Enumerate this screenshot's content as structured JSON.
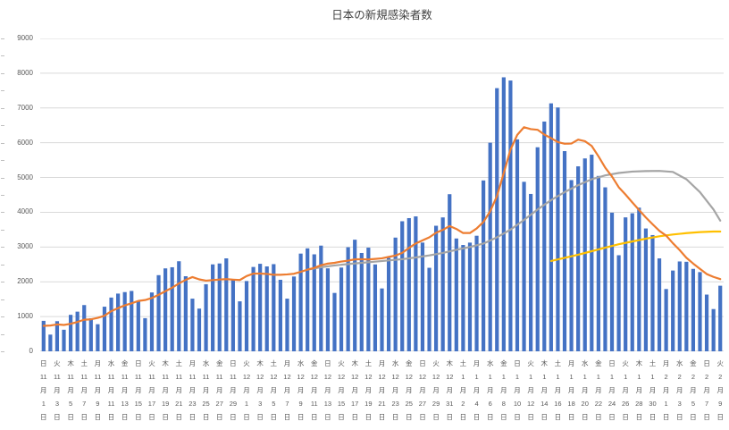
{
  "colors": {
    "bar": "#4472C4",
    "orange_line": "#ED7D31",
    "gray_line": "#A5A5A5",
    "yellow_line": "#FFC000",
    "grid": "#D9D9D9",
    "axis": "#BFBFBF",
    "text": "#595959"
  },
  "chart_data": {
    "type": "bar",
    "title": "日本の新規感染者数",
    "xlabel": "",
    "ylabel": "",
    "ylim": [
      0,
      9000
    ],
    "y_ticks": [
      0,
      1000,
      2000,
      3000,
      4000,
      5000,
      6000,
      7000,
      8000,
      9000
    ],
    "grid": true,
    "legend": "none",
    "x_range": "11月1日〜2月9日 (毎日、ラベルは2日毎)",
    "x_tick_labels": [
      [
        "日",
        "11",
        "月",
        "1",
        "日"
      ],
      [
        "火",
        "11",
        "月",
        "3",
        "日"
      ],
      [
        "木",
        "11",
        "月",
        "5",
        "日"
      ],
      [
        "土",
        "11",
        "月",
        "7",
        "日"
      ],
      [
        "月",
        "11",
        "月",
        "9",
        "日"
      ],
      [
        "水",
        "11",
        "月",
        "11",
        "日"
      ],
      [
        "金",
        "11",
        "月",
        "13",
        "日"
      ],
      [
        "日",
        "11",
        "月",
        "15",
        "日"
      ],
      [
        "火",
        "11",
        "月",
        "17",
        "日"
      ],
      [
        "木",
        "11",
        "月",
        "19",
        "日"
      ],
      [
        "土",
        "11",
        "月",
        "21",
        "日"
      ],
      [
        "月",
        "11",
        "月",
        "23",
        "日"
      ],
      [
        "水",
        "11",
        "月",
        "25",
        "日"
      ],
      [
        "金",
        "11",
        "月",
        "27",
        "日"
      ],
      [
        "日",
        "11",
        "月",
        "29",
        "日"
      ],
      [
        "火",
        "12",
        "月",
        "1",
        "日"
      ],
      [
        "木",
        "12",
        "月",
        "3",
        "日"
      ],
      [
        "土",
        "12",
        "月",
        "5",
        "日"
      ],
      [
        "月",
        "12",
        "月",
        "7",
        "日"
      ],
      [
        "水",
        "12",
        "月",
        "9",
        "日"
      ],
      [
        "金",
        "12",
        "月",
        "11",
        "日"
      ],
      [
        "日",
        "12",
        "月",
        "13",
        "日"
      ],
      [
        "火",
        "12",
        "月",
        "15",
        "日"
      ],
      [
        "木",
        "12",
        "月",
        "17",
        "日"
      ],
      [
        "土",
        "12",
        "月",
        "19",
        "日"
      ],
      [
        "月",
        "12",
        "月",
        "21",
        "日"
      ],
      [
        "水",
        "12",
        "月",
        "23",
        "日"
      ],
      [
        "金",
        "12",
        "月",
        "25",
        "日"
      ],
      [
        "日",
        "12",
        "月",
        "27",
        "日"
      ],
      [
        "火",
        "12",
        "月",
        "29",
        "日"
      ],
      [
        "木",
        "12",
        "月",
        "31",
        "日"
      ],
      [
        "土",
        "1",
        "月",
        "2",
        "日"
      ],
      [
        "月",
        "1",
        "月",
        "4",
        "日"
      ],
      [
        "水",
        "1",
        "月",
        "6",
        "日"
      ],
      [
        "金",
        "1",
        "月",
        "8",
        "日"
      ],
      [
        "日",
        "1",
        "月",
        "10",
        "日"
      ],
      [
        "火",
        "1",
        "月",
        "12",
        "日"
      ],
      [
        "木",
        "1",
        "月",
        "14",
        "日"
      ],
      [
        "土",
        "1",
        "月",
        "16",
        "日"
      ],
      [
        "月",
        "1",
        "月",
        "18",
        "日"
      ],
      [
        "水",
        "1",
        "月",
        "20",
        "日"
      ],
      [
        "金",
        "1",
        "月",
        "22",
        "日"
      ],
      [
        "日",
        "1",
        "月",
        "24",
        "日"
      ],
      [
        "火",
        "1",
        "月",
        "26",
        "日"
      ],
      [
        "木",
        "1",
        "月",
        "28",
        "日"
      ],
      [
        "土",
        "1",
        "月",
        "30",
        "日"
      ],
      [
        "月",
        "2",
        "月",
        "1",
        "日"
      ],
      [
        "水",
        "2",
        "月",
        "3",
        "日"
      ],
      [
        "金",
        "2",
        "月",
        "5",
        "日"
      ],
      [
        "日",
        "2",
        "月",
        "7",
        "日"
      ],
      [
        "火",
        "2",
        "月",
        "9",
        "日"
      ]
    ],
    "series": [
      {
        "name": "daily-new-cases-bars",
        "type": "bar",
        "color": "#4472C4",
        "values": [
          877,
          481,
          867,
          621,
          1050,
          1141,
          1331,
          952,
          780,
          1284,
          1547,
          1661,
          1704,
          1737,
          1440,
          954,
          1693,
          2191,
          2386,
          2418,
          2591,
          2160,
          1515,
          1229,
          1930,
          2501,
          2527,
          2674,
          2059,
          1438,
          2022,
          2427,
          2518,
          2442,
          2508,
          2058,
          1515,
          2152,
          2811,
          2962,
          2790,
          3041,
          2387,
          1680,
          2410,
          2994,
          3211,
          2829,
          2982,
          2500,
          1809,
          2686,
          3271,
          3742,
          3832,
          3881,
          3128,
          2403,
          3612,
          3852,
          4520,
          3246,
          3059,
          3127,
          3325,
          4915,
          6001,
          7570,
          7882,
          7790,
          6096,
          4876,
          4527,
          5870,
          6609,
          7133,
          7014,
          5759,
          4925,
          5321,
          5549,
          5656,
          5045,
          4717,
          3988,
          2764,
          3853,
          3971,
          4133,
          3534,
          3344,
          2673,
          1792,
          2324,
          2585,
          2576,
          2372,
          2279,
          1632,
          1216,
          1887
        ]
      },
      {
        "name": "orange-line",
        "type": "line",
        "color": "#ED7D31",
        "values": [
          732,
          742,
          774,
          758,
          793,
          845,
          910,
          920,
          963,
          1023,
          1155,
          1242,
          1323,
          1381,
          1450,
          1475,
          1534,
          1626,
          1729,
          1831,
          1953,
          2056,
          2136,
          2070,
          2033,
          2049,
          2065,
          2077,
          2062,
          2051,
          2164,
          2235,
          2238,
          2226,
          2202,
          2202,
          2213,
          2231,
          2286,
          2350,
          2399,
          2476,
          2523,
          2546,
          2583,
          2609,
          2645,
          2650,
          2642,
          2658,
          2676,
          2716,
          2755,
          2831,
          2975,
          3103,
          3193,
          3278,
          3410,
          3493,
          3604,
          3520,
          3403,
          3403,
          3534,
          3721,
          4028,
          4463,
          5126,
          5801,
          6226,
          6447,
          6392,
          6373,
          6236,
          6129,
          6018,
          5970,
          5977,
          6090,
          6044,
          5908,
          5610,
          5282,
          5029,
          4720,
          4510,
          4285,
          4067,
          3851,
          3655,
          3467,
          3329,
          3110,
          2912,
          2690,
          2524,
          2372,
          2223,
          2141,
          2078
        ]
      },
      {
        "name": "gray-line",
        "type": "line",
        "color": "#A5A5A5",
        "points": [
          [
            39,
            2350
          ],
          [
            41,
            2420
          ],
          [
            43,
            2470
          ],
          [
            45,
            2510
          ],
          [
            47,
            2545
          ],
          [
            49,
            2580
          ],
          [
            51,
            2615
          ],
          [
            53,
            2650
          ],
          [
            55,
            2700
          ],
          [
            57,
            2760
          ],
          [
            59,
            2830
          ],
          [
            61,
            2920
          ],
          [
            63,
            3000
          ],
          [
            65,
            3100
          ],
          [
            67,
            3280
          ],
          [
            69,
            3500
          ],
          [
            71,
            3780
          ],
          [
            73,
            4080
          ],
          [
            75,
            4350
          ],
          [
            77,
            4580
          ],
          [
            79,
            4780
          ],
          [
            81,
            4950
          ],
          [
            83,
            5060
          ],
          [
            85,
            5130
          ],
          [
            87,
            5170
          ],
          [
            89,
            5185
          ],
          [
            91,
            5190
          ],
          [
            93,
            5160
          ],
          [
            95,
            4950
          ],
          [
            97,
            4580
          ],
          [
            99,
            4080
          ],
          [
            100,
            3760
          ]
        ]
      },
      {
        "name": "yellow-line",
        "type": "line",
        "color": "#FFC000",
        "points": [
          [
            75,
            2600
          ],
          [
            77,
            2690
          ],
          [
            79,
            2780
          ],
          [
            81,
            2880
          ],
          [
            83,
            2980
          ],
          [
            85,
            3080
          ],
          [
            87,
            3160
          ],
          [
            89,
            3240
          ],
          [
            91,
            3310
          ],
          [
            93,
            3360
          ],
          [
            95,
            3400
          ],
          [
            97,
            3430
          ],
          [
            99,
            3445
          ],
          [
            100,
            3445
          ]
        ]
      }
    ]
  }
}
